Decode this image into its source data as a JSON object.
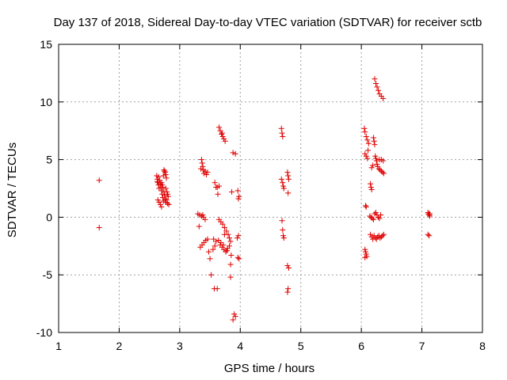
{
  "chart_data": {
    "type": "scatter",
    "title": "Day 137 of 2018, Sidereal Day-to-day VTEC variation (SDTVAR) for receiver sctb",
    "xlabel": "GPS time / hours",
    "ylabel": "SDTVAR / TECUs",
    "xlim": [
      1,
      8
    ],
    "ylim": [
      -10,
      15
    ],
    "xticks": [
      1,
      2,
      3,
      4,
      5,
      6,
      7,
      8
    ],
    "yticks": [
      -10,
      -5,
      0,
      5,
      10,
      15
    ],
    "grid": true,
    "marker": "+",
    "color": "#e00000",
    "series": [
      {
        "name": "sctb",
        "points": [
          [
            1.67,
            3.2
          ],
          [
            1.67,
            -0.9
          ],
          [
            2.62,
            3.6
          ],
          [
            2.63,
            3.3
          ],
          [
            2.64,
            3.0
          ],
          [
            2.65,
            2.8
          ],
          [
            2.66,
            2.5
          ],
          [
            2.65,
            3.5
          ],
          [
            2.67,
            3.2
          ],
          [
            2.68,
            2.9
          ],
          [
            2.69,
            2.6
          ],
          [
            2.7,
            2.3
          ],
          [
            2.71,
            2.0
          ],
          [
            2.72,
            1.7
          ],
          [
            2.73,
            1.4
          ],
          [
            2.7,
            3.0
          ],
          [
            2.72,
            2.6
          ],
          [
            2.74,
            2.2
          ],
          [
            2.75,
            1.9
          ],
          [
            2.76,
            1.6
          ],
          [
            2.77,
            1.3
          ],
          [
            2.64,
            1.5
          ],
          [
            2.66,
            1.3
          ],
          [
            2.68,
            1.1
          ],
          [
            2.7,
            0.9
          ],
          [
            2.74,
            4.1
          ],
          [
            2.75,
            4.0
          ],
          [
            2.76,
            3.9
          ],
          [
            2.77,
            3.7
          ],
          [
            2.78,
            3.4
          ],
          [
            2.79,
            2.2
          ],
          [
            2.8,
            2.0
          ],
          [
            2.81,
            1.8
          ],
          [
            2.78,
            1.5
          ],
          [
            2.8,
            1.2
          ],
          [
            2.82,
            1.1
          ],
          [
            2.63,
            3.1
          ],
          [
            2.71,
            2.8
          ],
          [
            2.73,
            3.6
          ],
          [
            2.77,
            2.5
          ],
          [
            3.3,
            0.3
          ],
          [
            3.33,
            0.2
          ],
          [
            3.36,
            0.1
          ],
          [
            3.39,
            0.0
          ],
          [
            3.42,
            -0.2
          ],
          [
            3.36,
            5.0
          ],
          [
            3.37,
            4.7
          ],
          [
            3.38,
            4.4
          ],
          [
            3.39,
            4.1
          ],
          [
            3.4,
            3.8
          ],
          [
            3.42,
            4.0
          ],
          [
            3.44,
            3.7
          ],
          [
            3.46,
            3.9
          ],
          [
            3.35,
            4.2
          ],
          [
            3.32,
            -0.8
          ],
          [
            3.34,
            -2.6
          ],
          [
            3.37,
            -2.4
          ],
          [
            3.4,
            -2.2
          ],
          [
            3.43,
            -2.0
          ],
          [
            3.46,
            -1.9
          ],
          [
            3.48,
            -3.0
          ],
          [
            3.5,
            -3.6
          ],
          [
            3.52,
            -5.0
          ],
          [
            3.55,
            -2.8
          ],
          [
            3.58,
            -2.5
          ],
          [
            3.57,
            -6.2
          ],
          [
            3.62,
            -6.2
          ],
          [
            3.56,
            -1.9
          ],
          [
            3.6,
            -2.1
          ],
          [
            3.62,
            2.6
          ],
          [
            3.65,
            2.7
          ],
          [
            3.63,
            2.0
          ],
          [
            3.6,
            2.6
          ],
          [
            3.58,
            3.0
          ],
          [
            3.38,
            0.2
          ],
          [
            3.65,
            7.8
          ],
          [
            3.67,
            7.5
          ],
          [
            3.69,
            7.2
          ],
          [
            3.71,
            7.0
          ],
          [
            3.73,
            6.8
          ],
          [
            3.75,
            6.6
          ],
          [
            3.7,
            7.3
          ],
          [
            3.65,
            -0.2
          ],
          [
            3.68,
            -0.4
          ],
          [
            3.71,
            -0.6
          ],
          [
            3.74,
            -0.9
          ],
          [
            3.77,
            -1.2
          ],
          [
            3.8,
            -1.5
          ],
          [
            3.82,
            -1.8
          ],
          [
            3.84,
            -2.1
          ],
          [
            3.67,
            -2.4
          ],
          [
            3.7,
            -2.6
          ],
          [
            3.73,
            -2.8
          ],
          [
            3.76,
            -3.0
          ],
          [
            3.79,
            -2.7
          ],
          [
            3.82,
            -2.5
          ],
          [
            3.64,
            -2.0
          ],
          [
            3.68,
            -2.2
          ],
          [
            3.72,
            -2.4
          ],
          [
            3.85,
            -3.3
          ],
          [
            3.84,
            -4.1
          ],
          [
            3.84,
            -5.2
          ],
          [
            3.86,
            2.2
          ],
          [
            3.88,
            5.6
          ],
          [
            3.92,
            5.5
          ],
          [
            3.9,
            -8.4
          ],
          [
            3.92,
            -8.6
          ],
          [
            3.88,
            -8.9
          ],
          [
            3.95,
            -1.8
          ],
          [
            3.97,
            -1.6
          ],
          [
            3.96,
            -3.5
          ],
          [
            3.98,
            -3.6
          ],
          [
            3.96,
            2.3
          ],
          [
            3.98,
            1.8
          ],
          [
            3.97,
            1.6
          ],
          [
            3.74,
            -1.5
          ],
          [
            3.78,
            -2.9
          ],
          [
            4.68,
            7.7
          ],
          [
            4.69,
            7.3
          ],
          [
            4.7,
            7.0
          ],
          [
            4.68,
            3.3
          ],
          [
            4.7,
            3.0
          ],
          [
            4.71,
            2.7
          ],
          [
            4.72,
            2.5
          ],
          [
            4.69,
            -0.3
          ],
          [
            4.7,
            -1.1
          ],
          [
            4.71,
            -1.6
          ],
          [
            4.72,
            -1.8
          ],
          [
            4.78,
            3.9
          ],
          [
            4.79,
            3.6
          ],
          [
            4.8,
            3.3
          ],
          [
            4.79,
            2.1
          ],
          [
            4.78,
            -4.2
          ],
          [
            4.8,
            -4.4
          ],
          [
            4.79,
            -6.2
          ],
          [
            4.78,
            -6.5
          ],
          [
            6.05,
            7.7
          ],
          [
            6.06,
            7.4
          ],
          [
            6.08,
            7.0
          ],
          [
            6.1,
            6.7
          ],
          [
            6.12,
            6.4
          ],
          [
            6.06,
            5.5
          ],
          [
            6.08,
            5.3
          ],
          [
            6.1,
            5.1
          ],
          [
            6.07,
            1.0
          ],
          [
            6.08,
            0.9
          ],
          [
            6.06,
            -2.8
          ],
          [
            6.07,
            -3.0
          ],
          [
            6.08,
            -3.2
          ],
          [
            6.09,
            -3.4
          ],
          [
            6.06,
            -3.5
          ],
          [
            6.15,
            2.9
          ],
          [
            6.16,
            2.6
          ],
          [
            6.17,
            2.4
          ],
          [
            6.15,
            -1.5
          ],
          [
            6.17,
            -1.7
          ],
          [
            6.19,
            -1.9
          ],
          [
            6.21,
            -1.6
          ],
          [
            6.23,
            -1.8
          ],
          [
            6.25,
            -1.9
          ],
          [
            6.27,
            -1.7
          ],
          [
            6.29,
            -1.6
          ],
          [
            6.31,
            -1.8
          ],
          [
            6.33,
            -1.7
          ],
          [
            6.35,
            -1.6
          ],
          [
            6.37,
            -1.5
          ],
          [
            6.14,
            0.1
          ],
          [
            6.16,
            0.0
          ],
          [
            6.18,
            -0.1
          ],
          [
            6.2,
            -0.2
          ],
          [
            6.22,
            0.3
          ],
          [
            6.24,
            0.4
          ],
          [
            6.26,
            0.2
          ],
          [
            6.28,
            0.0
          ],
          [
            6.3,
            -0.1
          ],
          [
            6.32,
            0.2
          ],
          [
            6.2,
            6.9
          ],
          [
            6.21,
            6.6
          ],
          [
            6.22,
            6.3
          ],
          [
            6.23,
            5.3
          ],
          [
            6.24,
            5.1
          ],
          [
            6.25,
            4.9
          ],
          [
            6.26,
            4.6
          ],
          [
            6.27,
            4.4
          ],
          [
            6.29,
            4.2
          ],
          [
            6.31,
            4.1
          ],
          [
            6.33,
            4.0
          ],
          [
            6.35,
            3.9
          ],
          [
            6.37,
            3.8
          ],
          [
            6.3,
            5.0
          ],
          [
            6.33,
            5.0
          ],
          [
            6.36,
            4.9
          ],
          [
            6.22,
            12.0
          ],
          [
            6.24,
            11.6
          ],
          [
            6.26,
            11.3
          ],
          [
            6.28,
            11.0
          ],
          [
            6.3,
            10.7
          ],
          [
            6.33,
            10.5
          ],
          [
            6.36,
            10.3
          ],
          [
            6.17,
            4.3
          ],
          [
            6.19,
            4.5
          ],
          [
            6.11,
            5.8
          ],
          [
            7.1,
            0.4
          ],
          [
            7.11,
            0.3
          ],
          [
            7.12,
            0.2
          ],
          [
            7.13,
            0.1
          ],
          [
            7.1,
            -1.5
          ],
          [
            7.12,
            -1.6
          ],
          [
            7.13,
            0.3
          ]
        ]
      }
    ]
  }
}
